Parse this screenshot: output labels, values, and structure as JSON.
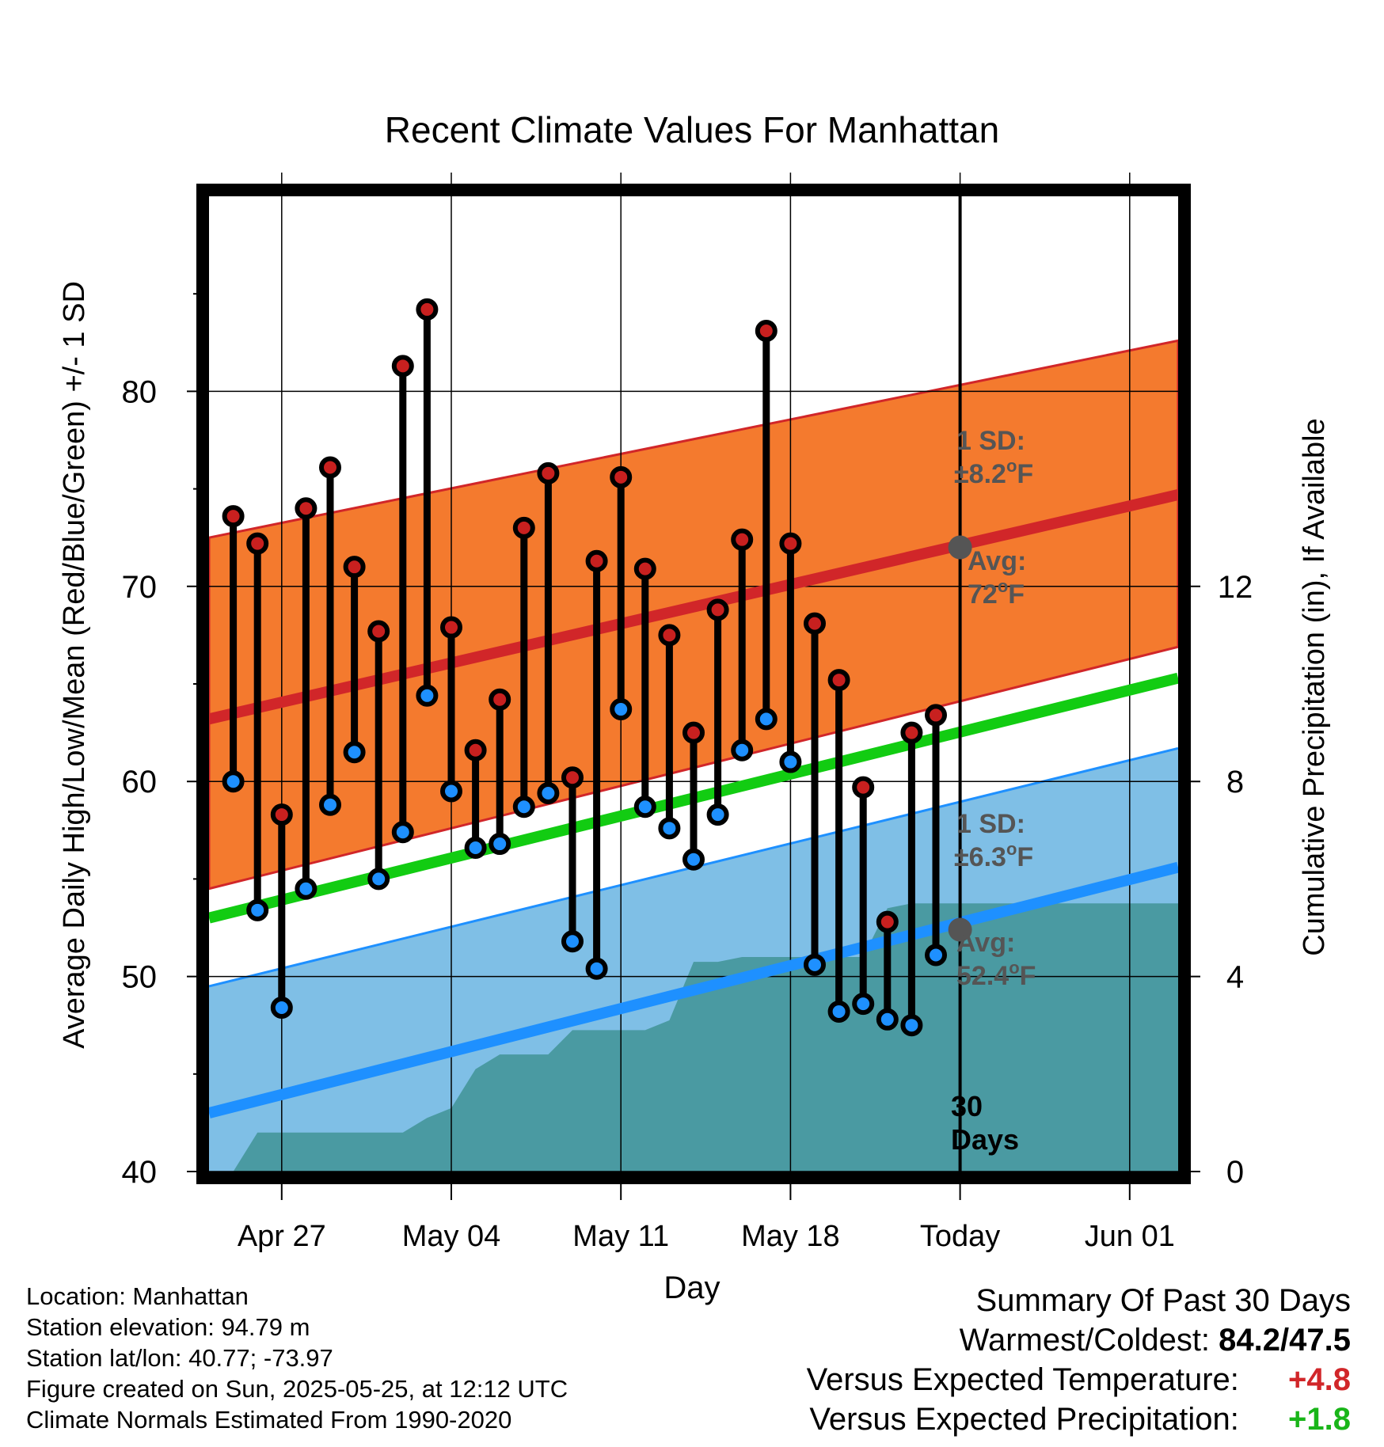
{
  "chart_data": {
    "type": "line",
    "title": "Recent Climate Values For Manhattan",
    "xlabel": "Day",
    "ylabel": "Average Daily High/Low/Mean (Red/Blue/Green) +/- 1 SD",
    "y2label": "Cumulative Precipitation (in), If Available",
    "x_ticks": [
      "Apr 27",
      "May 04",
      "May 11",
      "May 18",
      "Today",
      "Jun 01"
    ],
    "x_tick_dates": [
      "2025-04-27",
      "2025-05-04",
      "2025-05-11",
      "2025-05-18",
      "2025-05-25",
      "2025-06-01"
    ],
    "xlim": [
      "2025-04-24",
      "2025-06-03"
    ],
    "y_ticks": [
      40,
      50,
      60,
      70,
      80
    ],
    "ylim": [
      40,
      90
    ],
    "y2_ticks": [
      0,
      4,
      8,
      12
    ],
    "y2lim": [
      0,
      20
    ],
    "grid": true,
    "today": "2025-05-25",
    "today_label": "30\nDays",
    "dates": [
      "2025-04-25",
      "2025-04-26",
      "2025-04-27",
      "2025-04-28",
      "2025-04-29",
      "2025-04-30",
      "2025-05-01",
      "2025-05-02",
      "2025-05-03",
      "2025-05-04",
      "2025-05-05",
      "2025-05-06",
      "2025-05-07",
      "2025-05-08",
      "2025-05-09",
      "2025-05-10",
      "2025-05-11",
      "2025-05-12",
      "2025-05-13",
      "2025-05-14",
      "2025-05-15",
      "2025-05-16",
      "2025-05-17",
      "2025-05-18",
      "2025-05-19",
      "2025-05-20",
      "2025-05-21",
      "2025-05-22",
      "2025-05-23",
      "2025-05-24"
    ],
    "series": [
      {
        "name": "High",
        "color": "#c8201f",
        "values": [
          73.6,
          72.2,
          58.3,
          74.0,
          76.1,
          71.0,
          67.7,
          81.3,
          84.2,
          67.9,
          61.6,
          64.2,
          73.0,
          75.8,
          60.2,
          71.3,
          75.6,
          70.9,
          67.5,
          62.5,
          68.8,
          72.4,
          83.1,
          72.2,
          68.1,
          65.2,
          59.7,
          52.8,
          62.5,
          63.4
        ]
      },
      {
        "name": "Low",
        "color": "#1e90ff",
        "values": [
          60.0,
          53.4,
          48.4,
          54.5,
          58.8,
          61.5,
          55.0,
          57.4,
          64.4,
          59.5,
          56.6,
          56.8,
          58.7,
          59.4,
          51.8,
          50.4,
          63.7,
          58.7,
          57.6,
          56.0,
          58.3,
          61.6,
          63.2,
          61.0,
          50.6,
          48.2,
          48.6,
          47.8,
          47.5,
          51.1
        ]
      }
    ],
    "normals": {
      "high_avg": [
        63.2,
        74.7
      ],
      "high_sd_upper": [
        72.5,
        82.6
      ],
      "high_sd_lower": [
        54.5,
        66.9
      ],
      "low_avg": [
        43.0,
        55.6
      ],
      "low_sd_upper": [
        49.5,
        61.7
      ],
      "mean_avg": [
        53.0,
        65.3
      ]
    },
    "precip_dates": [
      "2025-04-24",
      "2025-04-25",
      "2025-04-26",
      "2025-04-27",
      "2025-04-28",
      "2025-04-29",
      "2025-04-30",
      "2025-05-01",
      "2025-05-02",
      "2025-05-03",
      "2025-05-04",
      "2025-05-05",
      "2025-05-06",
      "2025-05-07",
      "2025-05-08",
      "2025-05-09",
      "2025-05-10",
      "2025-05-11",
      "2025-05-12",
      "2025-05-13",
      "2025-05-14",
      "2025-05-15",
      "2025-05-16",
      "2025-05-17",
      "2025-05-18",
      "2025-05-19",
      "2025-05-20",
      "2025-05-21",
      "2025-05-22",
      "2025-05-23",
      "2025-05-24",
      "2025-05-25",
      "2025-06-03"
    ],
    "precip_values": [
      0.0,
      0.0,
      0.8,
      0.8,
      0.8,
      0.8,
      0.8,
      0.8,
      0.8,
      1.1,
      1.3,
      2.1,
      2.4,
      2.4,
      2.4,
      2.9,
      2.9,
      2.9,
      2.9,
      3.1,
      4.3,
      4.3,
      4.4,
      4.4,
      4.4,
      4.4,
      4.4,
      4.4,
      5.4,
      5.5,
      5.5,
      5.5,
      5.5
    ],
    "annotations": {
      "high_sd_label": "1 SD:",
      "high_sd_value": "±8.2°F",
      "high_avg_label": "Avg:",
      "high_avg_value": "72°F",
      "high_avg_today": 72,
      "low_sd_label": "1 SD:",
      "low_sd_value": "±6.3°F",
      "low_avg_label": "Avg:",
      "low_avg_value": "52.4°F",
      "low_avg_today": 52.4
    },
    "colors": {
      "high_band": "#f47a2e",
      "high_line": "#d12629",
      "low_band": "#7fbfe6",
      "low_line": "#1e90ff",
      "mean_line": "#12cc12",
      "precip": "#4a9aa2",
      "annotation": "#555555",
      "marker_today": "#555555"
    }
  },
  "footer": {
    "location": "Location: Manhattan",
    "elevation": "Station elevation: 94.79 m",
    "latlon": "Station lat/lon: 40.77; -73.97",
    "created": "Figure created on Sun, 2025-05-25, at 12:12 UTC",
    "normals": "Climate Normals Estimated From 1990-2020"
  },
  "summary": {
    "title": "Summary Of Past 30 Days",
    "warm_cold_label": "Warmest/Coldest:",
    "warm_cold_value": "84.2/47.5",
    "temp_label": "Versus Expected Temperature:",
    "temp_value": "+4.8",
    "temp_color": "#d12629",
    "precip_label": "Versus Expected Precipitation:",
    "precip_value": "+1.8",
    "precip_color": "#19b519"
  }
}
